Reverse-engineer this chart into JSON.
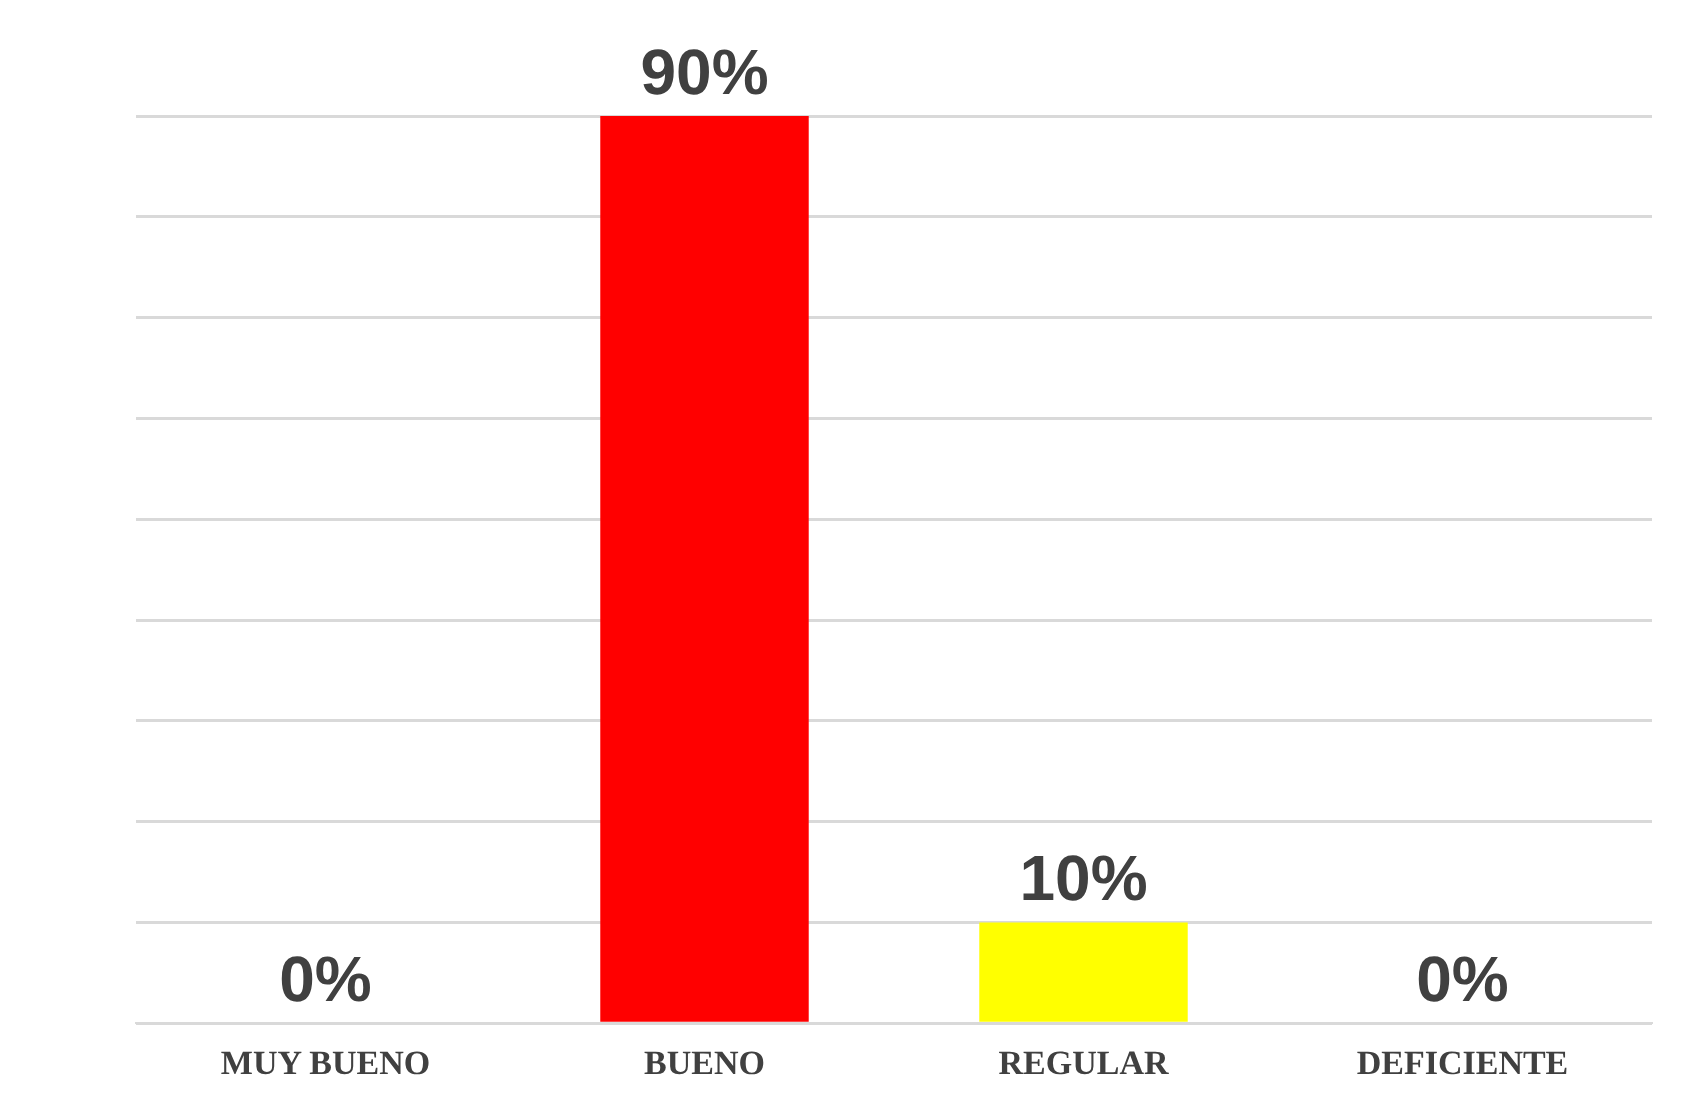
{
  "chart_data": {
    "type": "bar",
    "categories": [
      "MUY BUENO",
      "BUENO",
      "REGULAR",
      "DEFICIENTE"
    ],
    "values": [
      0,
      90,
      10,
      0
    ],
    "colors": [
      "#1f5f9e",
      "#ff0000",
      "#ffff00",
      "#1f5f9e"
    ],
    "value_labels": [
      "0%",
      "90%",
      "10%",
      "0%"
    ],
    "grid": "y",
    "tick_labels": "x"
  }
}
